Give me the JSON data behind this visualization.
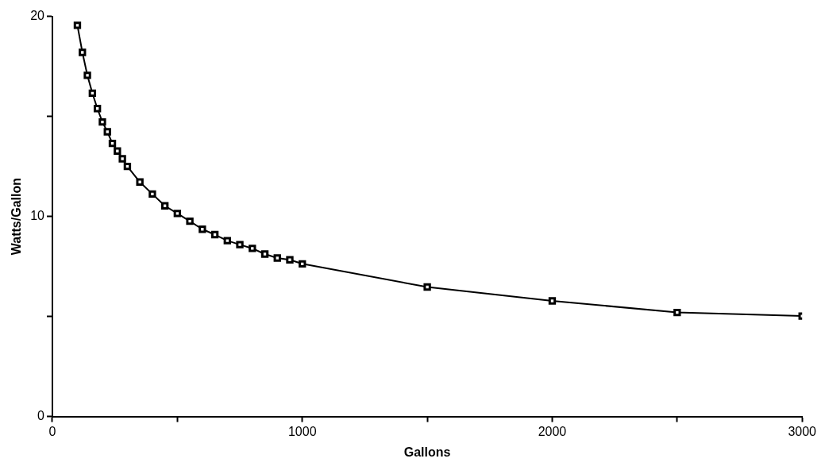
{
  "chart_data": {
    "type": "line",
    "xlabel": "Gallons",
    "ylabel": "Watts/Gallon",
    "x": [
      100,
      120,
      140,
      160,
      180,
      200,
      220,
      240,
      260,
      280,
      300,
      350,
      400,
      450,
      500,
      550,
      600,
      650,
      700,
      750,
      800,
      850,
      900,
      950,
      1000,
      1500,
      2000,
      2500,
      3000
    ],
    "series": [
      {
        "color": "#000000",
        "values": [
          19.55,
          18.2,
          17.05,
          16.16,
          15.39,
          14.72,
          14.23,
          13.65,
          13.27,
          12.88,
          12.5,
          11.72,
          11.12,
          10.53,
          10.15,
          9.76,
          9.36,
          9.09,
          8.79,
          8.59,
          8.4,
          8.12,
          7.92,
          7.83,
          7.63,
          6.47,
          5.78,
          5.2,
          5.02
        ]
      }
    ],
    "xlim": [
      0,
      3000
    ],
    "xticks": [
      0,
      {
        "value": 500,
        "label": null
      },
      1000,
      {
        "value": 1500,
        "label": null
      },
      2000,
      {
        "value": 2500,
        "label": null
      },
      3000
    ],
    "ylim": [
      0,
      20
    ],
    "yticks": [
      0,
      {
        "value": 5,
        "label": null
      },
      10,
      {
        "value": 15,
        "label": null
      },
      20
    ],
    "grid": false,
    "legend": false,
    "marker": "square",
    "line_style": "solid"
  }
}
